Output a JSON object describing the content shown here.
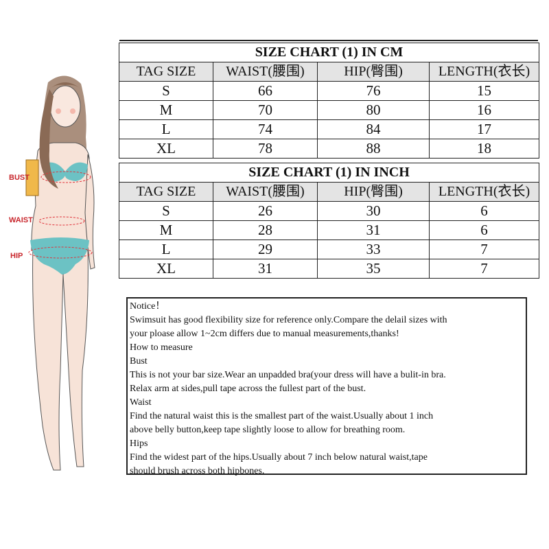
{
  "figure": {
    "labels": {
      "bust": "BUST",
      "waist": "WAIST",
      "hip": "HIP"
    },
    "colors": {
      "label": "#c8252b",
      "swimsuit": "#6cc2c4",
      "hair": "#8a6a55",
      "skin": "#f7e3d8"
    }
  },
  "tables": [
    {
      "title": "SIZE CHART (1) IN CM",
      "headers": [
        "TAG SIZE",
        "WAIST(腰围)",
        "HIP(臀围)",
        "LENGTH(衣长)"
      ],
      "rows": [
        [
          "S",
          "66",
          "76",
          "15"
        ],
        [
          "M",
          "70",
          "80",
          "16"
        ],
        [
          "L",
          "74",
          "84",
          "17"
        ],
        [
          "XL",
          "78",
          "88",
          "18"
        ]
      ]
    },
    {
      "title": "SIZE CHART (1) IN INCH",
      "headers": [
        "TAG SIZE",
        "WAIST(腰围)",
        "HIP(臀围)",
        "LENGTH(衣长)"
      ],
      "rows": [
        [
          "S",
          "26",
          "30",
          "6"
        ],
        [
          "M",
          "28",
          "31",
          "6"
        ],
        [
          "L",
          "29",
          "33",
          "7"
        ],
        [
          "XL",
          "31",
          "35",
          "7"
        ]
      ]
    }
  ],
  "notice": {
    "lines": [
      "Notice！",
      "Swimsuit has good flexibility size for reference only.Compare the delail sizes with",
      "your ploase allow 1~2cm differs due to manual measurements,thanks!",
      "How to measure",
      "Bust",
      "This is not your bar size.Wear an unpadded bra(your dress will have a bulit-in bra.",
      "Relax arm at sides,pull tape across the fullest part of  the bust.",
      "Waist",
      "Find the natural waist this is the smallest part of  the waist.Usually about 1 inch",
      "above belly button,keep tape slightly loose to allow for breathing room.",
      "Hips",
      "Find the widest part of the hips.Usually about 7 inch below natural waist,tape",
      "should brush across both hipbones."
    ]
  }
}
